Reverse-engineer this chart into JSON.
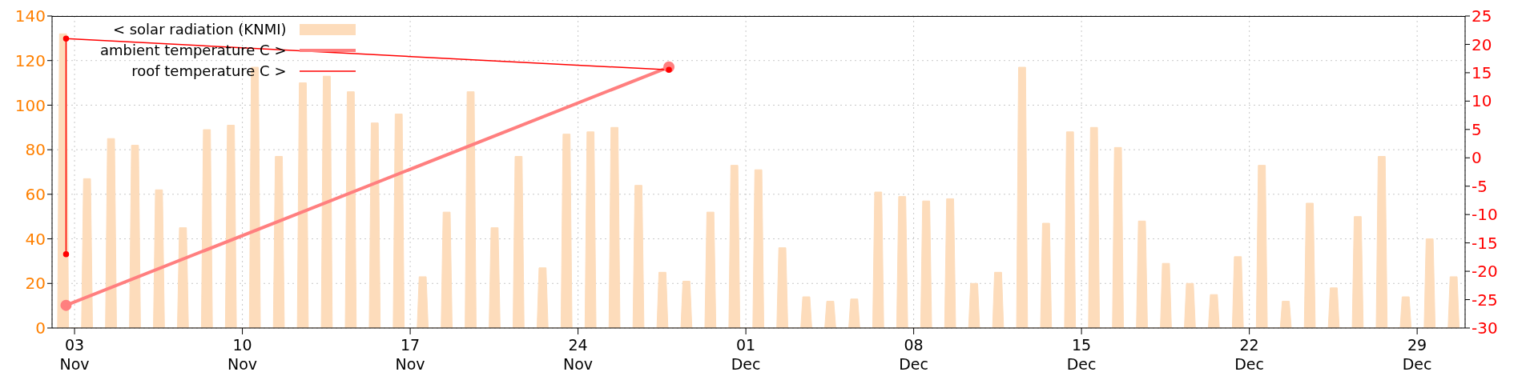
{
  "chart_data": {
    "type": "line",
    "xlim": [
      "--11-02T01:30",
      "--12-31T00:00"
    ],
    "xticks": [
      {
        "value": "--11-03",
        "label": "03 Nov"
      },
      {
        "value": "--11-10",
        "label": "10 Nov"
      },
      {
        "value": "--11-17",
        "label": "17 Nov"
      },
      {
        "value": "--11-24",
        "label": "24 Nov"
      },
      {
        "value": "--12-01",
        "label": "01 Dec"
      },
      {
        "value": "--12-08",
        "label": "08 Dec"
      },
      {
        "value": "--12-15",
        "label": "15 Dec"
      },
      {
        "value": "--12-22",
        "label": "22 Dec"
      },
      {
        "value": "--12-29",
        "label": "29 Dec"
      }
    ],
    "ylim": [
      0,
      140
    ],
    "yticks": [
      0,
      20,
      40,
      60,
      80,
      100,
      120,
      140
    ],
    "y2lim": [
      -30,
      25
    ],
    "y2ticks": [
      -30,
      -25,
      -20,
      -15,
      -10,
      -5,
      0,
      5,
      10,
      15,
      20,
      25
    ],
    "grid": true,
    "legend": "top left",
    "series": [
      {
        "name": "< solar radiation (KNMI)",
        "type": "area",
        "color": "#fddcbb",
        "x": [
          "--11-02T07:00",
          "--11-02T09:00",
          "--11-02T16:00",
          "--11-02T18:00",
          "--11-03T07:00",
          "--11-03T09:00",
          "--11-03T16:00",
          "--11-03T18:00",
          "--11-04T07:00",
          "--11-04T09:00",
          "--11-04T16:00",
          "--11-04T18:00",
          "--11-05T07:00",
          "--11-05T09:00",
          "--11-05T16:00",
          "--11-05T18:00",
          "--11-06T07:00",
          "--11-06T09:00",
          "--11-06T16:00",
          "--11-06T18:00",
          "--11-07T07:00",
          "--11-07T09:00",
          "--11-07T16:00",
          "--11-07T18:00",
          "--11-08T07:00",
          "--11-08T09:00",
          "--11-08T16:00",
          "--11-08T18:00",
          "--11-09T07:00",
          "--11-09T09:00",
          "--11-09T16:00",
          "--11-09T18:00",
          "--11-10T07:00",
          "--11-10T09:00",
          "--11-10T16:00",
          "--11-10T18:00",
          "--11-11T07:00",
          "--11-11T09:00",
          "--11-11T16:00",
          "--11-11T18:00",
          "--11-12T07:00",
          "--11-12T09:00",
          "--11-12T16:00",
          "--11-12T18:00",
          "--11-13T07:00",
          "--11-13T09:00",
          "--11-13T16:00",
          "--11-13T18:00",
          "--11-14T07:00",
          "--11-14T09:00",
          "--11-14T16:00",
          "--11-14T18:00",
          "--11-15T07:00",
          "--11-15T09:00",
          "--11-15T16:00",
          "--11-15T18:00",
          "--11-16T07:00",
          "--11-16T09:00",
          "--11-16T16:00",
          "--11-16T18:00",
          "--11-17T07:00",
          "--11-17T09:00",
          "--11-17T16:00",
          "--11-17T18:00",
          "--11-18T07:00",
          "--11-18T09:00",
          "--11-18T16:00",
          "--11-18T18:00",
          "--11-19T07:00",
          "--11-19T09:00",
          "--11-19T16:00",
          "--11-19T18:00",
          "--11-20T07:00",
          "--11-20T09:00",
          "--11-20T16:00",
          "--11-20T18:00",
          "--11-21T07:00",
          "--11-21T09:00",
          "--11-21T16:00",
          "--11-21T18:00",
          "--11-22T07:00",
          "--11-22T09:00",
          "--11-22T16:00",
          "--11-22T18:00",
          "--11-23T07:00",
          "--11-23T09:00",
          "--11-23T16:00",
          "--11-23T18:00",
          "--11-24T07:00",
          "--11-24T09:00",
          "--11-24T16:00",
          "--11-24T18:00",
          "--11-25T07:00",
          "--11-25T09:00",
          "--11-25T16:00",
          "--11-25T18:00",
          "--11-26T07:00",
          "--11-26T09:00",
          "--11-26T16:00",
          "--11-26T18:00",
          "--11-27T07:00",
          "--11-27T09:00",
          "--11-27T16:00",
          "--11-27T18:00",
          "--11-28T07:00",
          "--11-28T09:00",
          "--11-28T16:00",
          "--11-28T18:00",
          "--11-29T07:00",
          "--11-29T09:00",
          "--11-29T16:00",
          "--11-29T18:00",
          "--11-30T07:00",
          "--11-30T09:00",
          "--11-30T16:00",
          "--11-30T18:00",
          "--12-01T07:00",
          "--12-01T09:00",
          "--12-01T16:00",
          "--12-01T18:00",
          "--12-02T07:00",
          "--12-02T09:00",
          "--12-02T16:00",
          "--12-02T18:00",
          "--12-03T07:00",
          "--12-03T09:00",
          "--12-03T16:00",
          "--12-03T18:00",
          "--12-04T07:00",
          "--12-04T09:00",
          "--12-04T16:00",
          "--12-04T18:00",
          "--12-05T07:00",
          "--12-05T09:00",
          "--12-05T16:00",
          "--12-05T18:00",
          "--12-06T07:00",
          "--12-06T09:00",
          "--12-06T16:00",
          "--12-06T18:00",
          "--12-07T07:00",
          "--12-07T09:00",
          "--12-07T16:00",
          "--12-07T18:00",
          "--12-08T07:00",
          "--12-08T09:00",
          "--12-08T16:00",
          "--12-08T18:00",
          "--12-09T07:00",
          "--12-09T09:00",
          "--12-09T16:00",
          "--12-09T18:00",
          "--12-10T07:00",
          "--12-10T09:00",
          "--12-10T16:00",
          "--12-10T18:00",
          "--12-11T07:00",
          "--12-11T09:00",
          "--12-11T16:00",
          "--12-11T18:00",
          "--12-12T07:00",
          "--12-12T09:00",
          "--12-12T16:00",
          "--12-12T18:00",
          "--12-13T07:00",
          "--12-13T09:00",
          "--12-13T16:00",
          "--12-13T18:00",
          "--12-14T07:00",
          "--12-14T09:00",
          "--12-14T16:00",
          "--12-14T18:00",
          "--12-15T07:00",
          "--12-15T09:00",
          "--12-15T16:00",
          "--12-15T18:00",
          "--12-16T07:00",
          "--12-16T09:00",
          "--12-16T16:00",
          "--12-16T18:00",
          "--12-17T07:00",
          "--12-17T09:00",
          "--12-17T16:00",
          "--12-17T18:00",
          "--12-18T07:00",
          "--12-18T09:00",
          "--12-18T16:00",
          "--12-18T18:00",
          "--12-19T07:00",
          "--12-19T09:00",
          "--12-19T16:00",
          "--12-19T18:00",
          "--12-20T07:00",
          "--12-20T09:00",
          "--12-20T16:00",
          "--12-20T18:00",
          "--12-21T07:00",
          "--12-21T09:00",
          "--12-21T16:00",
          "--12-21T18:00",
          "--12-22T07:00",
          "--12-22T09:00",
          "--12-22T16:00",
          "--12-22T18:00",
          "--12-23T07:00",
          "--12-23T09:00",
          "--12-23T16:00",
          "--12-23T18:00",
          "--12-24T07:00",
          "--12-24T09:00",
          "--12-24T16:00",
          "--12-24T18:00",
          "--12-25T07:00",
          "--12-25T09:00",
          "--12-25T16:00",
          "--12-25T18:00",
          "--12-26T07:00",
          "--12-26T09:00",
          "--12-26T16:00",
          "--12-26T18:00",
          "--12-27T07:00",
          "--12-27T09:00",
          "--12-27T16:00",
          "--12-27T18:00",
          "--12-28T07:00",
          "--12-28T09:00",
          "--12-28T16:00",
          "--12-28T18:00",
          "--12-29T07:00",
          "--12-29T09:00",
          "--12-29T16:00",
          "--12-29T18:00",
          "--12-30T07:00",
          "--12-30T09:00",
          "--12-30T16:00",
          "--12-30T18:00"
        ],
        "values": [
          0,
          132,
          132,
          0,
          0,
          67,
          67,
          0,
          0,
          85,
          85,
          0,
          0,
          82,
          82,
          0,
          0,
          62,
          62,
          0,
          0,
          45,
          45,
          0,
          0,
          89,
          89,
          0,
          0,
          91,
          91,
          0,
          0,
          117,
          117,
          0,
          0,
          77,
          77,
          0,
          0,
          110,
          110,
          0,
          0,
          113,
          113,
          0,
          0,
          106,
          106,
          0,
          0,
          92,
          92,
          0,
          0,
          96,
          96,
          0,
          0,
          23,
          23,
          0,
          0,
          52,
          52,
          0,
          0,
          106,
          106,
          0,
          0,
          45,
          45,
          0,
          0,
          77,
          77,
          0,
          0,
          27,
          27,
          0,
          0,
          87,
          87,
          0,
          0,
          88,
          88,
          0,
          0,
          90,
          90,
          0,
          0,
          64,
          64,
          0,
          0,
          25,
          25,
          0,
          0,
          21,
          21,
          0,
          0,
          52,
          52,
          0,
          0,
          73,
          73,
          0,
          0,
          71,
          71,
          0,
          0,
          36,
          36,
          0,
          0,
          14,
          14,
          0,
          0,
          12,
          12,
          0,
          0,
          13,
          13,
          0,
          0,
          61,
          61,
          0,
          0,
          59,
          59,
          0,
          0,
          57,
          57,
          0,
          0,
          58,
          58,
          0,
          0,
          20,
          20,
          0,
          0,
          25,
          25,
          0,
          0,
          117,
          117,
          0,
          0,
          47,
          47,
          0,
          0,
          88,
          88,
          0,
          0,
          90,
          90,
          0,
          0,
          81,
          81,
          0,
          0,
          48,
          48,
          0,
          0,
          29,
          29,
          0,
          0,
          20,
          20,
          0,
          0,
          15,
          15,
          0,
          0,
          32,
          32,
          0,
          0,
          73,
          73,
          0,
          0,
          12,
          12,
          0,
          0,
          56,
          56,
          0,
          0,
          18,
          18,
          0,
          0,
          50,
          50,
          0,
          0,
          77,
          77,
          0,
          0,
          14,
          14,
          0,
          0,
          40,
          40,
          0,
          0,
          23,
          23,
          0
        ]
      },
      {
        "name": "ambient temperature C >",
        "axis": "y2",
        "color": "#ff7f7f",
        "marker": "circle",
        "x": [
          "--11-02T15:30",
          "--11-27T19:00"
        ],
        "values": [
          -26,
          16
        ]
      },
      {
        "name": "roof temperature C >",
        "axis": "y2",
        "color": "#ff0000",
        "marker": "circle",
        "x": [
          "--11-02T15:30",
          "--11-02T15:30",
          "--11-27T19:00"
        ],
        "values": [
          -17,
          21,
          15.5
        ]
      }
    ]
  }
}
